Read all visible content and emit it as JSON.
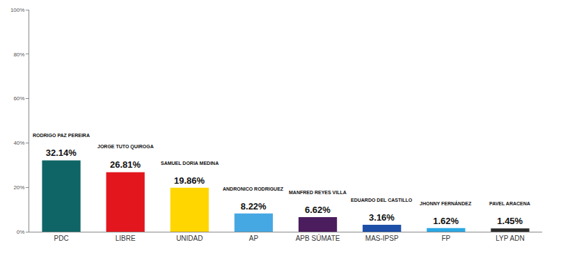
{
  "chart_data": {
    "type": "bar",
    "categories": [
      "PDC",
      "LIBRE",
      "UNIDAD",
      "AP",
      "APB SÚMATE",
      "MAS-IPSP",
      "FP",
      "LYP ADN"
    ],
    "values": [
      32.14,
      26.81,
      19.86,
      8.22,
      6.62,
      3.16,
      1.62,
      1.45
    ],
    "value_labels": [
      "32.14%",
      "26.81%",
      "19.86%",
      "8.22%",
      "6.62%",
      "3.16%",
      "1.62%",
      "1.45%"
    ],
    "colors": [
      "#0f6566",
      "#e3161d",
      "#ffd600",
      "#46a8e3",
      "#4b1d5e",
      "#1d4fa8",
      "#2aa9e4",
      "#2b2b2b"
    ],
    "annotations": [
      {
        "x": "PDC",
        "text": "RODRIGO PAZ PEREIRA"
      },
      {
        "x": "LIBRE",
        "text": "JORGE TUTO QUIROGA"
      },
      {
        "x": "UNIDAD",
        "text": "SAMUEL DORIA MEDINA"
      },
      {
        "x": "AP",
        "text": "ANDRONICO RODRIGUEZ"
      },
      {
        "x": "APB SÚMATE",
        "text": "MANFRED REYES VILLA"
      },
      {
        "x": "MAS-IPSP",
        "text": "EDUARDO DEL CASTILLO"
      },
      {
        "x": "FP",
        "text": "JHONNY FERNÁNDEZ"
      },
      {
        "x": "LYP ADN",
        "text": "PAVEL ARACENA"
      }
    ],
    "ylim": [
      0,
      100
    ],
    "yticks": [
      {
        "value": 0,
        "label": "0%"
      },
      {
        "value": 20,
        "label": "20%"
      },
      {
        "value": 40,
        "label": "40%"
      },
      {
        "value": 60,
        "label": "60%"
      },
      {
        "value": 80,
        "label": "80%"
      },
      {
        "value": 100,
        "label": "100%"
      }
    ],
    "grid": false,
    "data_labels": true
  }
}
